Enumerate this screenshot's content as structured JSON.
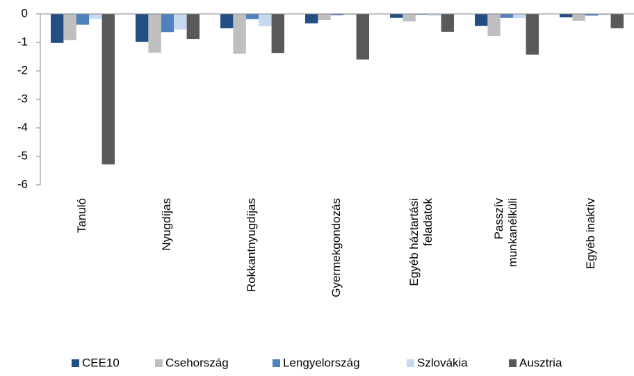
{
  "chart_data": {
    "type": "bar",
    "categories": [
      "Tanuló",
      "Nyugdíjas",
      "Rokkantnyugdíjas",
      "Gyermekgondozás",
      "Egyéb háztartási\nfeladatok",
      "Passzív\nmunkanélküli",
      "Egyéb inaktív"
    ],
    "series": [
      {
        "name": "CEE10",
        "color": "#234e84",
        "values": [
          -1.02,
          -0.98,
          -0.5,
          -0.33,
          -0.14,
          -0.42,
          -0.12
        ]
      },
      {
        "name": "Csehország",
        "color": "#bfbfbf",
        "values": [
          -0.92,
          -1.36,
          -1.4,
          -0.22,
          -0.26,
          -0.78,
          -0.24
        ]
      },
      {
        "name": "Lengyelország",
        "color": "#4f81bd",
        "values": [
          -0.38,
          -0.64,
          -0.18,
          -0.05,
          -0.03,
          -0.14,
          -0.06
        ]
      },
      {
        "name": "Szlovákia",
        "color": "#c6d9f1",
        "values": [
          -0.17,
          -0.55,
          -0.43,
          -0.04,
          -0.06,
          -0.15,
          -0.05
        ]
      },
      {
        "name": "Ausztria",
        "color": "#595959",
        "values": [
          -5.28,
          -0.88,
          -1.37,
          -1.6,
          -0.63,
          -1.43,
          -0.5
        ]
      }
    ],
    "ylim": [
      -6,
      0
    ],
    "yticks": [
      0,
      -1,
      -2,
      -3,
      -4,
      -5,
      -6
    ],
    "grid": false
  }
}
